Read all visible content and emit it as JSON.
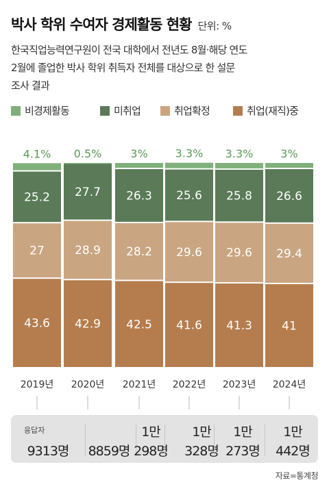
{
  "header": {
    "title": "박사 학위 수여자 경제활동 현황",
    "unit": "단위: %",
    "subtitle_lines": [
      "한국직업능력연구원이 전국 대학에서 전년도 8월·해당 연도",
      "2월에 졸업한 박사 학위 취득자 전체를 대상으로 한 설문",
      "조사 결과"
    ]
  },
  "colors": {
    "비경제활동": "#7fb07a",
    "미취업": "#5a7a58",
    "취업확정": "#c9a582",
    "취업(재직)중": "#b57d4e"
  },
  "chart_data": {
    "type": "bar",
    "stacked": true,
    "categories": [
      "2019년",
      "2020년",
      "2021년",
      "2022년",
      "2023년",
      "2024년"
    ],
    "series": [
      {
        "name": "취업(재직)중",
        "values": [
          43.6,
          42.9,
          42.5,
          41.6,
          41.3,
          41
        ],
        "labels": [
          "43.6",
          "42.9",
          "42.5",
          "41.6",
          "41.3",
          "41"
        ]
      },
      {
        "name": "취업확정",
        "values": [
          27,
          28.9,
          28.2,
          29.6,
          29.6,
          29.4
        ],
        "labels": [
          "27",
          "28.9",
          "28.2",
          "29.6",
          "29.6",
          "29.4"
        ]
      },
      {
        "name": "미취업",
        "values": [
          25.2,
          27.7,
          26.3,
          25.6,
          25.8,
          26.6
        ],
        "labels": [
          "25.2",
          "27.7",
          "26.3",
          "25.6",
          "25.8",
          "26.6"
        ]
      },
      {
        "name": "비경제활동",
        "values": [
          4.1,
          0.5,
          3,
          3.3,
          3.3,
          3
        ],
        "labels": [
          "4.1%",
          "0.5%",
          "3%",
          "3.3%",
          "3.3%",
          "3%"
        ]
      }
    ],
    "legend": [
      "비경제활동",
      "미취업",
      "취업확정",
      "취업(재직)중"
    ],
    "legend_position": "top",
    "ylim": [
      0,
      100
    ],
    "grid": false
  },
  "respondents": {
    "tag": "응답자",
    "values": [
      {
        "line1": "",
        "line2": "9313명"
      },
      {
        "line1": "",
        "line2": "8859명"
      },
      {
        "line1": "1만",
        "line2": "298명"
      },
      {
        "line1": "1만",
        "line2": "328명"
      },
      {
        "line1": "1만",
        "line2": "273명"
      },
      {
        "line1": "1만",
        "line2": "442명"
      }
    ]
  },
  "source": "자료=통계청"
}
